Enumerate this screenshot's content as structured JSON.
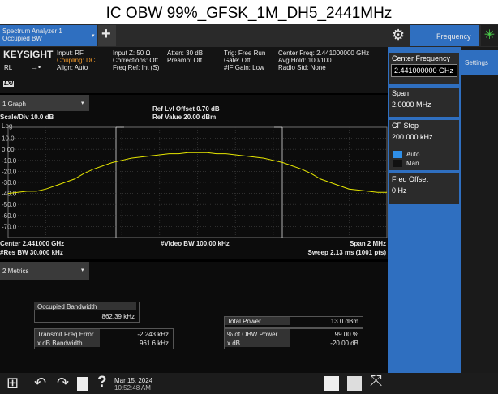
{
  "title": "IC OBW 99%_GFSK_1M_DH5_2441MHz",
  "toolbar": {
    "tab_line1": "Spectrum Analyzer 1",
    "tab_line2": "Occupied BW",
    "add": "+",
    "menu": "Frequency"
  },
  "info": {
    "brand": "KEYSIGHT",
    "rl": "RL",
    "lxi": "LXI",
    "col1": [
      "Input: RF",
      "Coupling: DC",
      "Align: Auto"
    ],
    "col2": [
      "Input Z: 50 Ω",
      "Corrections: Off",
      "Freq Ref: Int (S)"
    ],
    "col3": [
      "Atten: 30 dB",
      "Preamp: Off"
    ],
    "col4": [
      "Trig: Free Run",
      "Gate: Off",
      "#IF Gain: Low"
    ],
    "col5": [
      "Center Freq: 2.441000000 GHz",
      "Avg|Hold: 100/100",
      "Radio Std: None"
    ]
  },
  "softkeys": {
    "settings": "Settings",
    "center_label": "Center Frequency",
    "center_value": "2.441000000 GHz",
    "span_label": "Span",
    "span_value": "2.0000 MHz",
    "cfstep_label": "CF Step",
    "cfstep_value": "200.000 kHz",
    "auto": "Auto",
    "man": "Man",
    "offset_label": "Freq Offset",
    "offset_value": "0 Hz"
  },
  "graph": {
    "header": "1 Graph",
    "ref_offset": "Ref Lvl Offset 0.70 dB",
    "ref_value": "Ref Value 20.00 dBm",
    "scale": "Scale/Div 10.0 dB",
    "log": "Log",
    "ylim": [
      -80,
      20
    ],
    "yticks": [
      {
        "value": 10,
        "label": "10.0"
      },
      {
        "value": 0,
        "label": "0.00"
      },
      {
        "value": -10,
        "label": "-10.0"
      },
      {
        "value": -20,
        "label": "-20.0"
      },
      {
        "value": -30,
        "label": "-30.0"
      },
      {
        "value": -40,
        "label": "-40.0"
      },
      {
        "value": -50,
        "label": "-50.0"
      },
      {
        "value": -60,
        "label": "-60.0"
      },
      {
        "value": -70,
        "label": "-70.0"
      }
    ],
    "trace": {
      "color": "#e6e600",
      "values": [
        -40,
        -39,
        -38,
        -38,
        -36,
        -33,
        -30,
        -27,
        -22,
        -18,
        -15,
        -12,
        -10,
        -8,
        -7,
        -6,
        -5,
        -4,
        -4,
        -3,
        -3,
        -3,
        -4,
        -4,
        -5,
        -6,
        -7,
        -8,
        -10,
        -12,
        -15,
        -18,
        -22,
        -27,
        -30,
        -33,
        -36,
        -37,
        -38,
        -39,
        -39
      ]
    },
    "center": "Center 2.441000 GHz",
    "vbw": "#Video BW 100.00 kHz",
    "span": "Span 2 MHz",
    "rbw": "#Res BW 30.000 kHz",
    "sweep": "Sweep 2.13 ms (1001 pts)"
  },
  "metrics": {
    "header": "2 Metrics",
    "obw_label": "Occupied Bandwidth",
    "obw_value": "862.39 kHz",
    "tfe_label": "Transmit Freq Error",
    "tfe_value": "-2.243 kHz",
    "xdbbw_label": "x dB Bandwidth",
    "xdbbw_value": "961.6 kHz",
    "tp_label": "Total Power",
    "tp_value": "13.0 dBm",
    "pct_label": "% of OBW Power",
    "pct_value": "99.00 %",
    "xdb_label": "x dB",
    "xdb_value": "-20.00 dB"
  },
  "taskbar": {
    "help": "?",
    "date": "Mar 15, 2024",
    "time": "10:52:48 AM"
  }
}
